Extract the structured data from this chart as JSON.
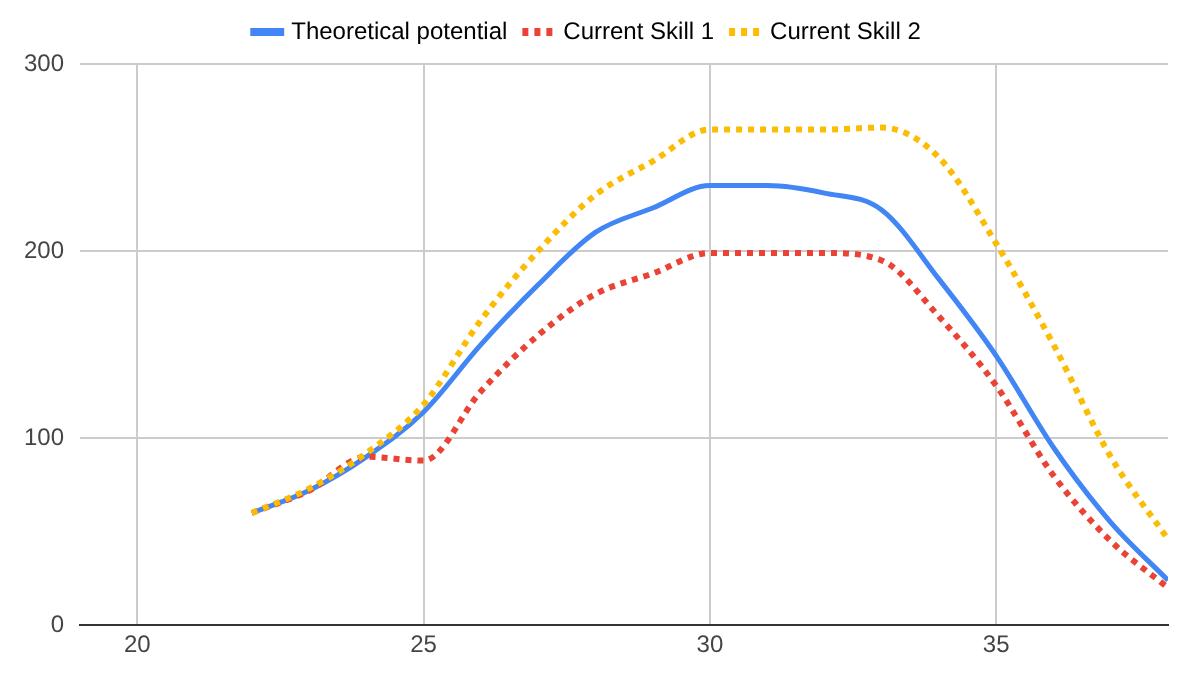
{
  "chart_data": {
    "type": "line",
    "x": [
      22,
      23,
      24,
      25,
      26,
      27,
      28,
      29,
      30,
      31,
      32,
      33,
      34,
      35,
      36,
      37,
      38
    ],
    "series": [
      {
        "name": "Theoretical potential",
        "color": "#4285f4",
        "line_style": "solid",
        "values": [
          60,
          72,
          90,
          114,
          150,
          182,
          210,
          223,
          235,
          235,
          231,
          222,
          185,
          144,
          95,
          55,
          24
        ]
      },
      {
        "name": "Current Skill 1",
        "color": "#ea4335",
        "line_style": "dotted",
        "values": [
          60,
          72,
          90,
          88,
          125,
          155,
          177,
          188,
          199,
          199,
          199,
          195,
          165,
          128,
          80,
          45,
          20
        ]
      },
      {
        "name": "Current Skill 2",
        "color": "#fbbc04",
        "line_style": "dotted",
        "values": [
          60,
          73,
          92,
          118,
          163,
          200,
          230,
          248,
          265,
          265,
          265,
          266,
          250,
          204,
          150,
          90,
          46
        ]
      }
    ],
    "xlim": [
      19,
      38
    ],
    "xticks": [
      20,
      25,
      30,
      35
    ],
    "ylim": [
      0,
      300
    ],
    "yticks": [
      0,
      100,
      200,
      300
    ],
    "grid": true,
    "legend": "top",
    "marker": "none"
  }
}
